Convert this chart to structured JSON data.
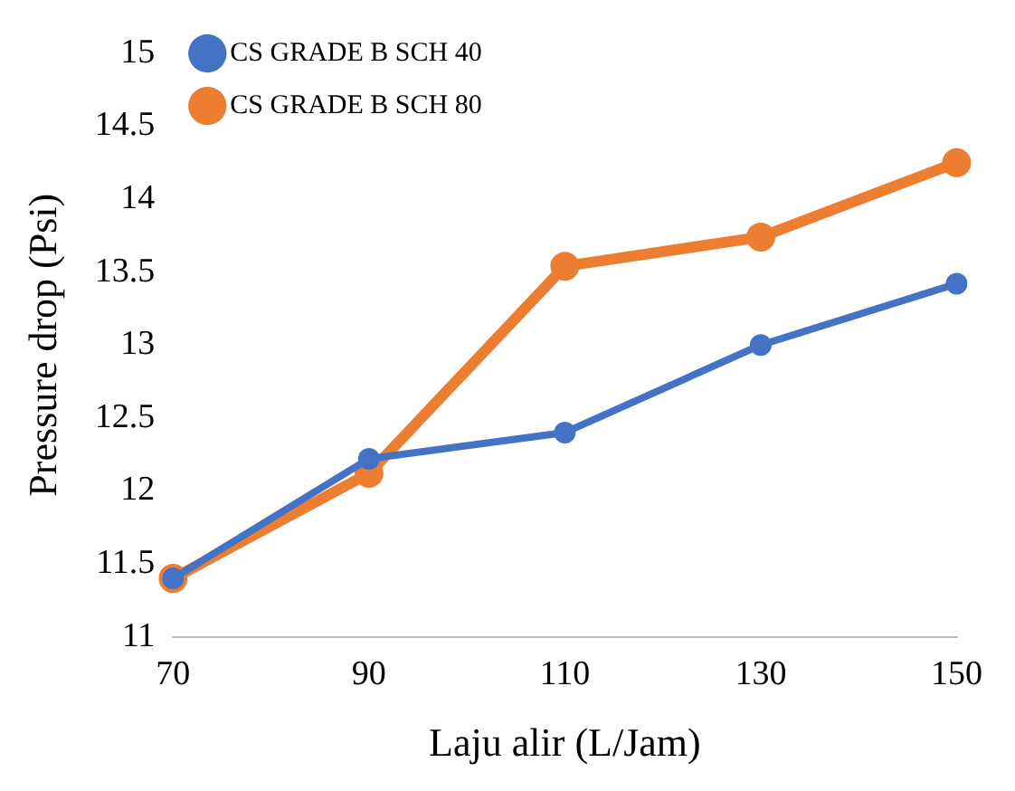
{
  "chart_data": {
    "type": "line",
    "xlabel": "Laju alir (L/Jam)",
    "ylabel": "Pressure drop (Psi)",
    "categories": [
      "70",
      "90",
      "110",
      "130",
      "150"
    ],
    "series": [
      {
        "name": "CS GRADE B SCH 40",
        "color": "#4472c4",
        "values": [
          11.4,
          12.22,
          12.4,
          13.0,
          13.42
        ]
      },
      {
        "name": "CS GRADE B SCH 80",
        "color": "#ed7d31",
        "values": [
          11.4,
          12.12,
          13.54,
          13.74,
          14.25
        ]
      }
    ],
    "ylim": [
      11,
      15
    ],
    "yticks": [
      11,
      11.5,
      12,
      12.5,
      13,
      13.5,
      14,
      14.5,
      15
    ],
    "grid": false,
    "legend": "top left",
    "marker": "circle",
    "line_style": "solid"
  }
}
